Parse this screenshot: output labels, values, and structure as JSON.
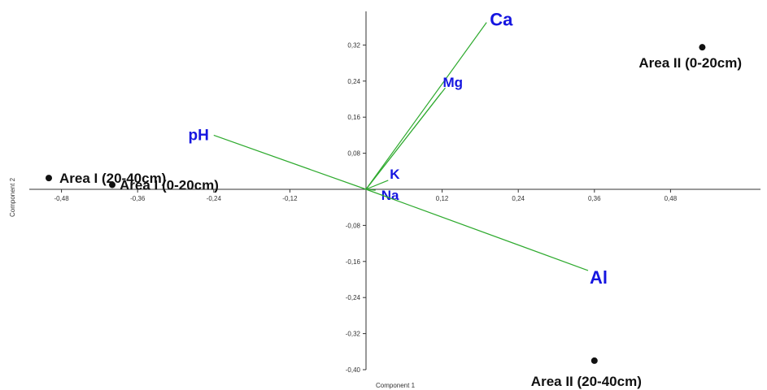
{
  "chart_data": {
    "type": "scatter",
    "xlabel": "Component 1",
    "ylabel": "Component 2",
    "xlim": [
      -0.52,
      0.58
    ],
    "ylim": [
      -0.41,
      0.38
    ],
    "x_ticks": [
      {
        "value": -0.48,
        "label": "-0,48"
      },
      {
        "value": -0.36,
        "label": "-0,36"
      },
      {
        "value": -0.24,
        "label": "-0,24"
      },
      {
        "value": -0.12,
        "label": "-0,12"
      },
      {
        "value": 0.12,
        "label": "0,12"
      },
      {
        "value": 0.24,
        "label": "0,24"
      },
      {
        "value": 0.36,
        "label": "0,36"
      },
      {
        "value": 0.48,
        "label": "0,48"
      }
    ],
    "y_ticks": [
      {
        "value": 0.32,
        "label": "0,32"
      },
      {
        "value": 0.24,
        "label": "0,24"
      },
      {
        "value": 0.16,
        "label": "0,16"
      },
      {
        "value": 0.08,
        "label": "0,08"
      },
      {
        "value": -0.08,
        "label": "-0,08"
      },
      {
        "value": -0.16,
        "label": "-0,16"
      },
      {
        "value": -0.24,
        "label": "-0,24"
      },
      {
        "value": -0.32,
        "label": "-0,32"
      },
      {
        "value": -0.4,
        "label": "-0,40"
      }
    ],
    "points": [
      {
        "label": "Area I (20-40cm)",
        "x": -0.5,
        "y": 0.025
      },
      {
        "label": "Area I (0-20cm)",
        "x": -0.4,
        "y": 0.01
      },
      {
        "label": "Area II (0-20cm)",
        "x": 0.53,
        "y": 0.315
      },
      {
        "label": "Area II (20-40cm)",
        "x": 0.36,
        "y": -0.38
      }
    ],
    "loadings": [
      {
        "label": "Ca",
        "x": 0.19,
        "y": 0.37
      },
      {
        "label": "Mg",
        "x": 0.125,
        "y": 0.225
      },
      {
        "label": "pH",
        "x": -0.24,
        "y": 0.12
      },
      {
        "label": "K",
        "x": 0.035,
        "y": 0.02
      },
      {
        "label": "Na",
        "x": 0.015,
        "y": -0.002
      },
      {
        "label": "Al",
        "x": 0.35,
        "y": -0.18
      }
    ],
    "colors": {
      "loading_line": "#2eaa2e",
      "loading_label": "#1515e0",
      "point": "#111111",
      "axis": "#333333"
    }
  }
}
